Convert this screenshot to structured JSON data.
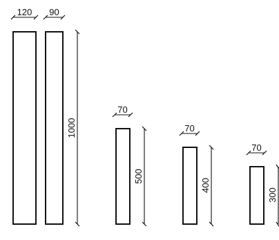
{
  "drawing": {
    "top_widths": {
      "w1": "120",
      "w2": "90",
      "w3": "70",
      "w4": "70",
      "w5": "70"
    },
    "heights": {
      "h1": "1000",
      "h2": "500",
      "h3": "400",
      "h4": "300"
    },
    "line_color": "#111111",
    "background": "#ffffff"
  }
}
